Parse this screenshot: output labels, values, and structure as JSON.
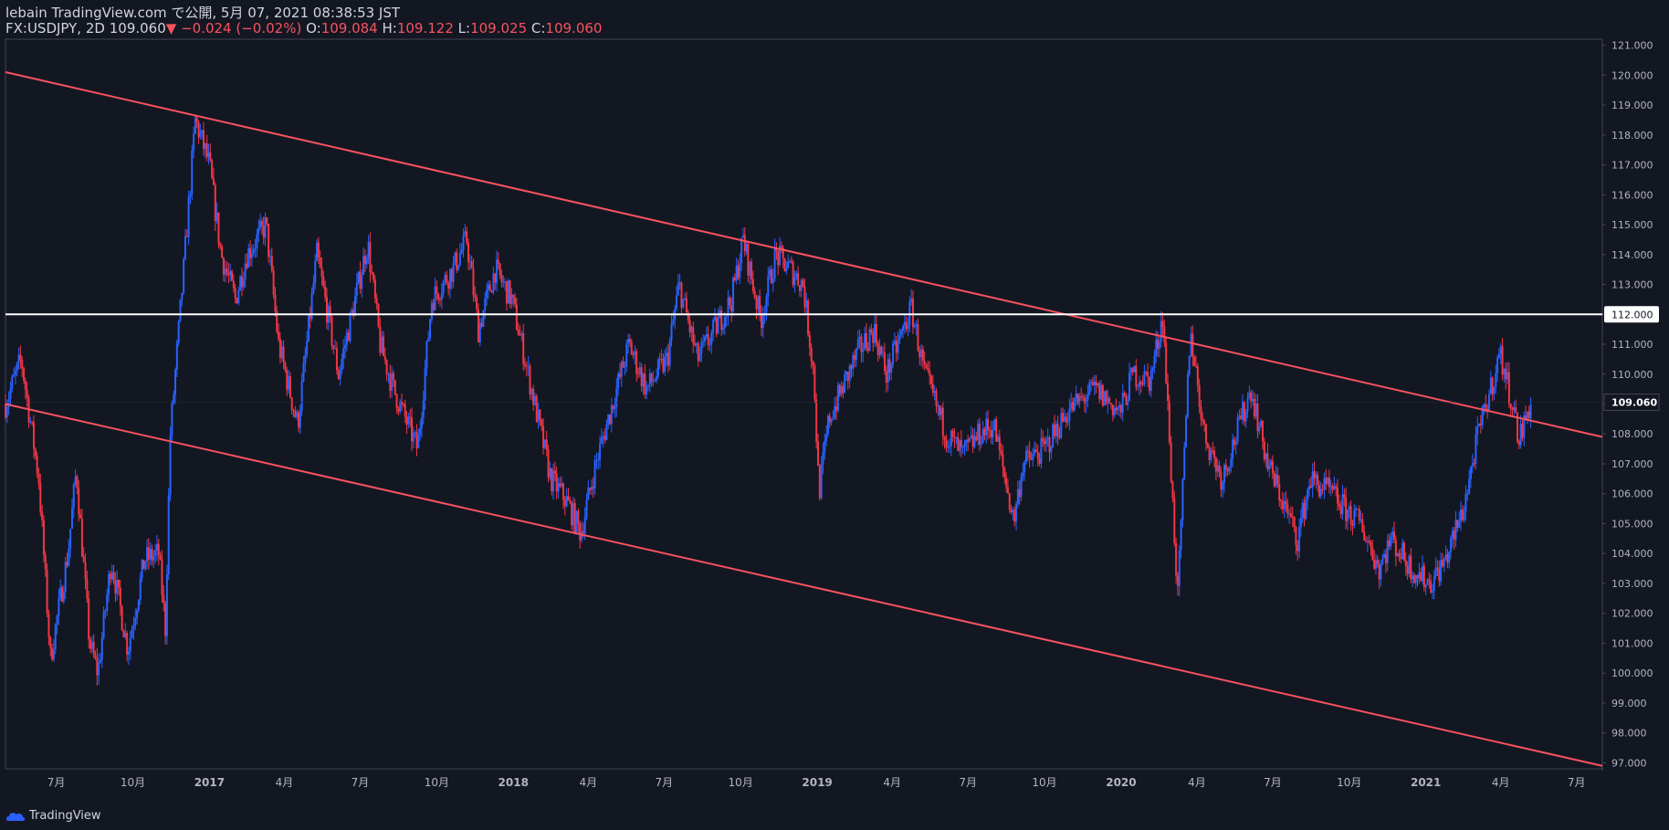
{
  "header": {
    "line1": "lebain TradingView.com で公開, 5月 07, 2021 08:38:53 JST",
    "symbol": "FX:USDJPY, 2D",
    "last": "109.060",
    "change_arrow": "▼",
    "change": "−0.024 (−0.02%)",
    "o_label": "O:",
    "o_value": "109.084",
    "h_label": "H:",
    "h_value": "109.122",
    "l_label": "L:",
    "l_value": "109.025",
    "c_label": "C:",
    "c_value": "109.060"
  },
  "brand": {
    "name": "TradingView",
    "icon": "tradingview-cloud-icon"
  },
  "colors": {
    "background": "#131722",
    "up": "#2962ff",
    "down": "#f23645",
    "trendline": "#f7525f",
    "hline": "#ffffff",
    "axis_text": "#b2b5be",
    "grid_border": "#434651"
  },
  "chart_data": {
    "type": "candlestick",
    "symbol": "USDJPY",
    "timeframe": "2D",
    "ylim": [
      96.8,
      121.2
    ],
    "y_ticks": [
      "121.000",
      "120.000",
      "119.000",
      "118.000",
      "117.000",
      "116.000",
      "115.000",
      "114.000",
      "113.000",
      "112.000",
      "111.000",
      "110.000",
      "109.000",
      "108.000",
      "107.000",
      "106.000",
      "105.000",
      "104.000",
      "103.000",
      "102.000",
      "101.000",
      "100.000",
      "99.000",
      "98.000",
      "97.000"
    ],
    "x_ticks": [
      "7月",
      "10月",
      "2017",
      "4月",
      "7月",
      "10月",
      "2018",
      "4月",
      "7月",
      "10月",
      "2019",
      "4月",
      "7月",
      "10月",
      "2020",
      "4月",
      "7月",
      "10月",
      "2021",
      "4月",
      "7月"
    ],
    "x_tick_dates": [
      "2016-07",
      "2016-10",
      "2017-01",
      "2017-04",
      "2017-07",
      "2017-10",
      "2018-01",
      "2018-04",
      "2018-07",
      "2018-10",
      "2019-01",
      "2019-04",
      "2019-07",
      "2019-10",
      "2020-01",
      "2020-04",
      "2020-07",
      "2020-10",
      "2021-01",
      "2021-04",
      "2021-07"
    ],
    "horizontal_line": {
      "value": 112.0,
      "label": "112.000"
    },
    "last_price": {
      "value": 109.06,
      "label": "109.060"
    },
    "trendlines": [
      {
        "name": "upper channel",
        "points": [
          [
            "2016-05-01",
            120.1
          ],
          [
            "2021-08-01",
            107.9
          ]
        ]
      },
      {
        "name": "lower channel",
        "points": [
          [
            "2016-05-01",
            109.0
          ],
          [
            "2021-08-01",
            96.9
          ]
        ]
      }
    ],
    "price_path": [
      [
        "2016-05-01",
        109.0
      ],
      [
        "2016-05-20",
        110.5
      ],
      [
        "2016-06-10",
        106.5
      ],
      [
        "2016-06-24",
        100.5
      ],
      [
        "2016-07-15",
        104.0
      ],
      [
        "2016-07-25",
        106.8
      ],
      [
        "2016-08-10",
        101.0
      ],
      [
        "2016-08-20",
        100.0
      ],
      [
        "2016-09-05",
        103.8
      ],
      [
        "2016-09-25",
        100.8
      ],
      [
        "2016-10-15",
        103.8
      ],
      [
        "2016-11-01",
        104.0
      ],
      [
        "2016-11-09",
        101.5
      ],
      [
        "2016-11-15",
        108.0
      ],
      [
        "2016-12-01",
        113.5
      ],
      [
        "2016-12-15",
        118.5
      ],
      [
        "2017-01-01",
        117.0
      ],
      [
        "2017-01-15",
        114.0
      ],
      [
        "2017-02-01",
        112.5
      ],
      [
        "2017-02-15",
        114.0
      ],
      [
        "2017-03-10",
        115.0
      ],
      [
        "2017-03-25",
        111.0
      ],
      [
        "2017-04-17",
        108.3
      ],
      [
        "2017-05-10",
        114.0
      ],
      [
        "2017-06-05",
        110.0
      ],
      [
        "2017-07-10",
        114.4
      ],
      [
        "2017-07-25",
        111.0
      ],
      [
        "2017-08-10",
        109.5
      ],
      [
        "2017-09-08",
        107.5
      ],
      [
        "2017-09-25",
        112.5
      ],
      [
        "2017-10-20",
        113.5
      ],
      [
        "2017-11-06",
        114.5
      ],
      [
        "2017-11-20",
        111.5
      ],
      [
        "2017-12-10",
        113.5
      ],
      [
        "2017-12-30",
        112.5
      ],
      [
        "2018-01-15",
        110.5
      ],
      [
        "2018-02-15",
        106.5
      ],
      [
        "2018-03-05",
        105.8
      ],
      [
        "2018-03-23",
        104.7
      ],
      [
        "2018-04-10",
        107.0
      ],
      [
        "2018-05-20",
        111.0
      ],
      [
        "2018-06-10",
        109.5
      ],
      [
        "2018-07-05",
        110.5
      ],
      [
        "2018-07-19",
        113.0
      ],
      [
        "2018-08-10",
        110.5
      ],
      [
        "2018-08-25",
        111.2
      ],
      [
        "2018-09-20",
        112.5
      ],
      [
        "2018-10-04",
        114.5
      ],
      [
        "2018-10-25",
        111.8
      ],
      [
        "2018-11-12",
        114.0
      ],
      [
        "2018-11-30",
        113.5
      ],
      [
        "2018-12-15",
        113.0
      ],
      [
        "2018-12-28",
        110.0
      ],
      [
        "2019-01-03",
        106.0
      ],
      [
        "2019-01-15",
        108.5
      ],
      [
        "2019-02-20",
        110.8
      ],
      [
        "2019-03-10",
        111.5
      ],
      [
        "2019-03-25",
        110.0
      ],
      [
        "2019-04-24",
        112.2
      ],
      [
        "2019-05-10",
        110.0
      ],
      [
        "2019-06-05",
        108.0
      ],
      [
        "2019-06-25",
        107.3
      ],
      [
        "2019-07-15",
        108.0
      ],
      [
        "2019-08-01",
        108.3
      ],
      [
        "2019-08-25",
        105.1
      ],
      [
        "2019-09-05",
        107.0
      ],
      [
        "2019-10-01",
        107.5
      ],
      [
        "2019-10-30",
        108.8
      ],
      [
        "2019-12-01",
        109.5
      ],
      [
        "2019-12-31",
        108.7
      ],
      [
        "2020-01-15",
        110.0
      ],
      [
        "2020-02-05",
        109.8
      ],
      [
        "2020-02-20",
        112.0
      ],
      [
        "2020-03-09",
        102.5
      ],
      [
        "2020-03-24",
        111.5
      ],
      [
        "2020-04-10",
        108.0
      ],
      [
        "2020-05-01",
        106.5
      ],
      [
        "2020-06-05",
        109.5
      ],
      [
        "2020-06-25",
        107.0
      ],
      [
        "2020-07-31",
        104.5
      ],
      [
        "2020-08-15",
        106.5
      ],
      [
        "2020-09-10",
        106.0
      ],
      [
        "2020-09-25",
        105.5
      ],
      [
        "2020-10-15",
        105.0
      ],
      [
        "2020-11-06",
        103.5
      ],
      [
        "2020-11-20",
        104.5
      ],
      [
        "2020-12-15",
        103.5
      ],
      [
        "2021-01-06",
        103.0
      ],
      [
        "2021-01-25",
        103.8
      ],
      [
        "2021-02-15",
        105.5
      ],
      [
        "2021-03-05",
        108.0
      ],
      [
        "2021-03-15",
        109.0
      ],
      [
        "2021-03-31",
        110.7
      ],
      [
        "2021-04-15",
        109.0
      ],
      [
        "2021-04-23",
        107.8
      ],
      [
        "2021-05-07",
        109.06
      ]
    ]
  }
}
